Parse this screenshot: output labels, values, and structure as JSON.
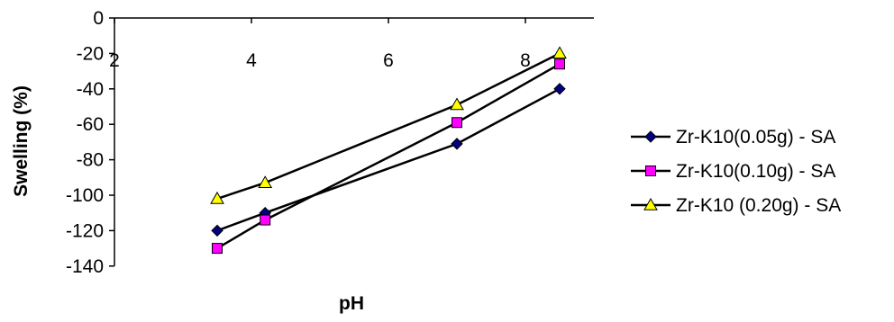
{
  "chart_data": {
    "type": "line",
    "title": "",
    "xlabel": "pH",
    "ylabel": "Swelling (%)",
    "xlim": [
      2,
      9
    ],
    "ylim": [
      -140,
      0
    ],
    "xticks": [
      2,
      4,
      6,
      8
    ],
    "yticks": [
      0,
      -20,
      -40,
      -60,
      -80,
      -100,
      -120,
      -140
    ],
    "grid": false,
    "legend": "right",
    "series": [
      {
        "name": "Zr-K10(0.05g) - SA",
        "color": "#000080",
        "marker": "diamond",
        "x": [
          3.5,
          4.2,
          7.0,
          8.5
        ],
        "y": [
          -120,
          -110,
          -71,
          -40
        ]
      },
      {
        "name": "Zr-K10(0.10g) - SA",
        "color": "#ff00ff",
        "marker": "square",
        "x": [
          3.5,
          4.2,
          7.0,
          8.5
        ],
        "y": [
          -130,
          -114,
          -59,
          -26
        ]
      },
      {
        "name": "Zr-K10 (0.20g) - SA",
        "color": "#ffff00",
        "marker": "triangle",
        "x": [
          3.5,
          4.2,
          7.0,
          8.5
        ],
        "y": [
          -102,
          -93,
          -49,
          -20
        ]
      }
    ]
  }
}
